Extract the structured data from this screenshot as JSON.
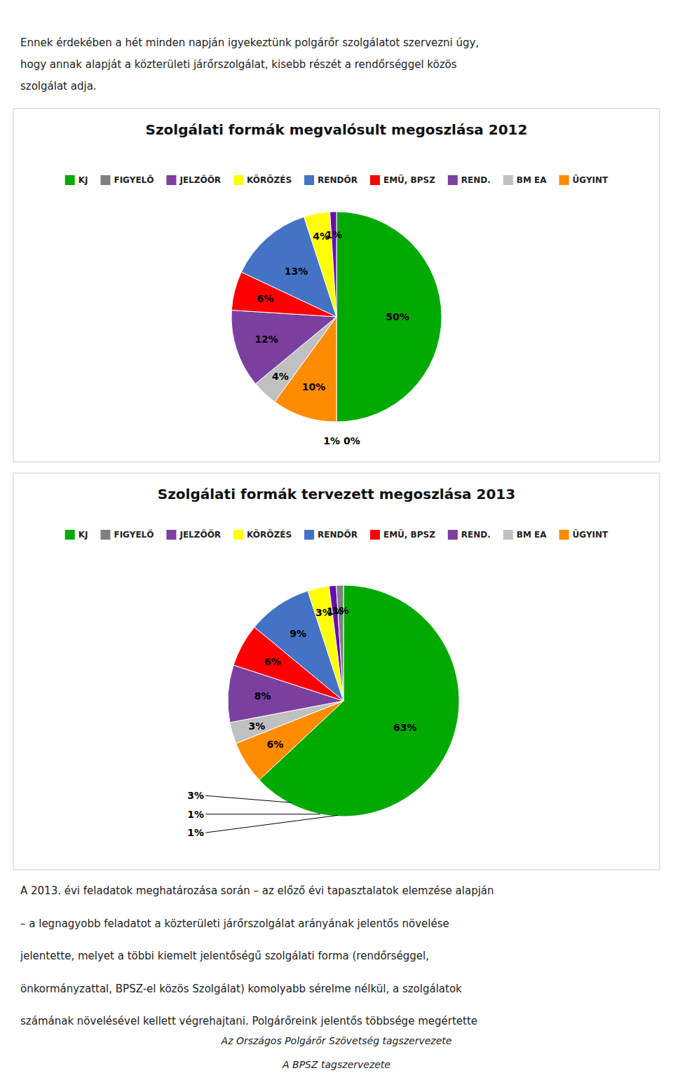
{
  "chart_data": [
    {
      "type": "pie",
      "title": "Szolgálati formák megvalósult megoszlása 2012",
      "values": [
        50,
        10,
        4,
        12,
        6,
        13,
        4,
        1,
        0
      ],
      "colors": [
        "#00AA00",
        "#FF8C00",
        "#C0C0C0",
        "#7B3FA0",
        "#FF0000",
        "#4472C4",
        "#FFFF00",
        "#6A0DAD",
        "#808080"
      ],
      "data_labels": true,
      "value_labels": [
        "50%",
        "10%",
        "4%",
        "12%",
        "6%",
        "13%",
        "4%",
        "1%",
        null
      ],
      "legend_items": [
        {
          "name": "KJ",
          "color": "#00AA00"
        },
        {
          "name": "FIGYELŐ",
          "color": "#808080"
        },
        {
          "name": "JELZŐŐR",
          "color": "#7B3FA0"
        },
        {
          "name": "KÖRÖZÉS",
          "color": "#FFFF00"
        },
        {
          "name": "RENDŐR",
          "color": "#4472C4"
        },
        {
          "name": "EMÜ, BPSZ",
          "color": "#FF0000"
        },
        {
          "name": "REND.",
          "color": "#7B3FA0"
        },
        {
          "name": "BM EA",
          "color": "#C0C0C0"
        },
        {
          "name": "ÜGYINT",
          "color": "#FF8C00"
        }
      ],
      "annotations": [
        {
          "text": "1% 0%"
        }
      ]
    },
    {
      "type": "pie",
      "title": "Szolgálati formák tervezett megoszlása 2013",
      "values": [
        63,
        6,
        3,
        8,
        6,
        9,
        3,
        1,
        1
      ],
      "colors": [
        "#00AA00",
        "#FF8C00",
        "#C0C0C0",
        "#7B3FA0",
        "#FF0000",
        "#4472C4",
        "#FFFF00",
        "#6A0DAD",
        "#808080"
      ],
      "data_labels": true,
      "value_labels": [
        "63%",
        "6%",
        "3%",
        "8%",
        "6%",
        "9%",
        "3%",
        "1%",
        "1%"
      ],
      "legend_items": [
        {
          "name": "KJ",
          "color": "#00AA00"
        },
        {
          "name": "FIGYELŐ",
          "color": "#808080"
        },
        {
          "name": "JELZŐŐR",
          "color": "#7B3FA0"
        },
        {
          "name": "KÖRÖZÉS",
          "color": "#FFFF00"
        },
        {
          "name": "RENDŐR",
          "color": "#4472C4"
        },
        {
          "name": "EMÜ, BPSZ",
          "color": "#FF0000"
        },
        {
          "name": "REND.",
          "color": "#7B3FA0"
        },
        {
          "name": "BM EA",
          "color": "#C0C0C0"
        },
        {
          "name": "ÜGYINT",
          "color": "#FF8C00"
        }
      ],
      "annotations": [
        {
          "text": "3%"
        },
        {
          "text": "1%"
        },
        {
          "text": "1%"
        }
      ]
    }
  ],
  "text_top_lines": [
    "Ennek érdekében a hét minden napján igyekeztünk polgárőr szolgálatot szervezni úgy,",
    "hogy annak alapját a közterületi járőrszolgálat, kisebb részét a rendőrséggel közös",
    "szolgálat adja."
  ],
  "text_bottom_lines": [
    "A 2013. évi feladatok meghatározása során – az előző évi tapasztalatok elemzése alapján",
    "– a legnagyobb feladatot a közterületi járőrszolgálat arányának jelentős növelése",
    "jelentette, melyet a többi kiemelt jelentőségű szolgálati forma (rendőrséggel,",
    "önkormányzattal, BPSZ-el közös Szolgálat) komolyabb sérelme nélkül, a szolgálatok",
    "számának növelésével kellett végrehajtani.  Polgárőreink jelentős többsége megértette"
  ],
  "text_footer1": "Az Országos Polgárőr Szövetség tagszervezete",
  "text_footer2": "A BPSZ tagszervezete"
}
